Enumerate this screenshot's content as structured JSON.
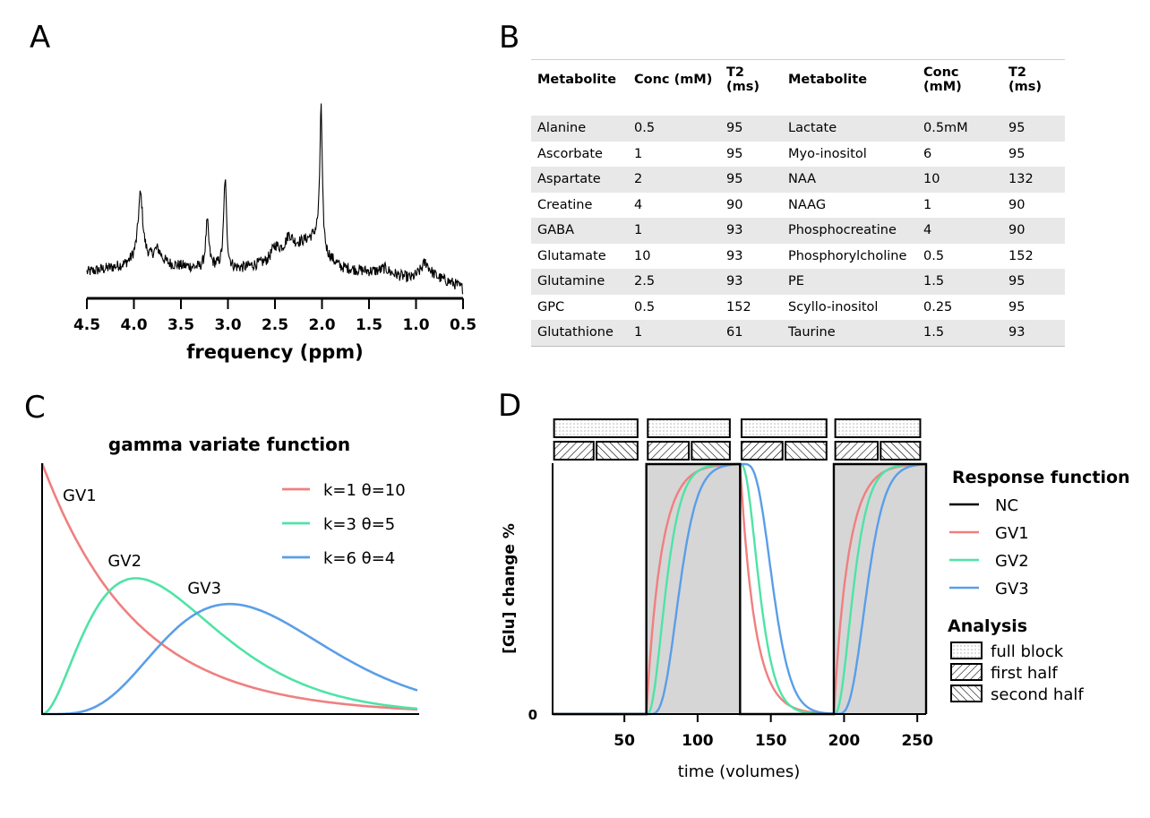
{
  "panels": {
    "a": "A",
    "b": "B",
    "c": "C",
    "d": "D"
  },
  "chart_data": [
    {
      "id": "A",
      "type": "line",
      "description_series": "MR spectrum (noisy trace)",
      "xlabel": "frequency (ppm)",
      "ylabel": "",
      "xlim": [
        4.5,
        0.5
      ],
      "x_reversed": true,
      "xticks": [
        "4.5",
        "4.0",
        "3.5",
        "3.0",
        "2.5",
        "2.0",
        "1.5",
        "1.0",
        "0.5"
      ],
      "baseline": [
        [
          4.5,
          0.1
        ],
        [
          4.3,
          0.12
        ],
        [
          4.1,
          0.14
        ],
        [
          3.95,
          0.18
        ],
        [
          3.8,
          0.16
        ],
        [
          3.6,
          0.14
        ],
        [
          3.4,
          0.13
        ],
        [
          3.3,
          0.12
        ],
        [
          3.15,
          0.13
        ],
        [
          3.0,
          0.12
        ],
        [
          2.9,
          0.12
        ],
        [
          2.8,
          0.13
        ],
        [
          2.6,
          0.16
        ],
        [
          2.45,
          0.22
        ],
        [
          2.3,
          0.26
        ],
        [
          2.15,
          0.3
        ],
        [
          2.05,
          0.32
        ],
        [
          1.95,
          0.2
        ],
        [
          1.8,
          0.13
        ],
        [
          1.6,
          0.11
        ],
        [
          1.4,
          0.1
        ],
        [
          1.2,
          0.08
        ],
        [
          1.05,
          0.06
        ],
        [
          0.9,
          0.1
        ],
        [
          0.75,
          0.06
        ],
        [
          0.6,
          0.03
        ],
        [
          0.5,
          0.0
        ]
      ],
      "peaks": [
        {
          "ppm": 3.93,
          "height": 0.4,
          "width": 0.03
        },
        {
          "ppm": 3.75,
          "height": 0.08,
          "width": 0.05
        },
        {
          "ppm": 3.22,
          "height": 0.28,
          "width": 0.02
        },
        {
          "ppm": 3.03,
          "height": 0.55,
          "width": 0.018
        },
        {
          "ppm": 2.5,
          "height": 0.06,
          "width": 0.04
        },
        {
          "ppm": 2.35,
          "height": 0.08,
          "width": 0.04
        },
        {
          "ppm": 2.01,
          "height": 0.85,
          "width": 0.015
        },
        {
          "ppm": 1.33,
          "height": 0.03,
          "width": 0.05
        },
        {
          "ppm": 0.9,
          "height": 0.06,
          "width": 0.05
        }
      ],
      "ylim": [
        0,
        1.25
      ]
    },
    {
      "id": "C",
      "type": "line",
      "title": "gamma variate function",
      "xlim": [
        0,
        40
      ],
      "ylim": [
        0,
        0.1
      ],
      "series": [
        {
          "name": "GV1",
          "legend": "k=1 θ=10",
          "k": 1,
          "theta": 10,
          "color": "#f07f7f"
        },
        {
          "name": "GV2",
          "legend": "k=3 θ=5",
          "k": 3,
          "theta": 5,
          "color": "#4fe3a6"
        },
        {
          "name": "GV3",
          "legend": "k=6 θ=4",
          "k": 6,
          "theta": 4,
          "color": "#5a9ee8"
        }
      ],
      "annotations": [
        {
          "text": "GV1",
          "x": 2.2,
          "y": 0.085
        },
        {
          "text": "GV2",
          "x": 7,
          "y": 0.059
        },
        {
          "text": "GV3",
          "x": 15.5,
          "y": 0.048
        }
      ]
    },
    {
      "id": "D",
      "type": "line",
      "xlabel": "time (volumes)",
      "ylabel": "[Glu] change %",
      "xlim": [
        1,
        256
      ],
      "ylim": [
        0,
        1
      ],
      "xticks": [
        50,
        100,
        150,
        200,
        250
      ],
      "yticks": [
        {
          "value": 0,
          "label": "0"
        }
      ],
      "stimulus_blocks": [
        [
          65,
          129
        ],
        [
          193,
          256
        ]
      ],
      "analysis_blocks": {
        "full_block": [
          [
            2,
            59
          ],
          [
            66,
            122
          ],
          [
            130,
            188
          ],
          [
            194,
            252
          ]
        ],
        "first_half": [
          [
            2,
            29
          ],
          [
            31,
            59
          ],
          [
            66,
            94
          ],
          [
            96,
            122
          ],
          [
            130,
            158
          ],
          [
            160,
            188
          ],
          [
            194,
            223
          ],
          [
            225,
            252
          ]
        ]
      },
      "series": [
        {
          "name": "NC",
          "color": "#000000"
        },
        {
          "name": "GV1",
          "color": "#f07f7f",
          "k": 1,
          "theta": 10
        },
        {
          "name": "GV2",
          "color": "#4fe3a6",
          "k": 3,
          "theta": 5
        },
        {
          "name": "GV3",
          "color": "#5a9ee8",
          "k": 6,
          "theta": 4
        }
      ],
      "legend_title": "Response function",
      "legend_items": [
        "NC",
        "GV1",
        "GV2",
        "GV3"
      ],
      "analysis_title": "Analysis",
      "analysis_items": [
        "full block",
        "first half",
        "second half"
      ]
    }
  ],
  "table_b": {
    "headers": [
      "Metabolite",
      "Conc (mM)",
      "T2 (ms)",
      "Metabolite",
      "Conc (mM)",
      "T2 (ms)"
    ],
    "rows": [
      [
        "Alanine",
        "0.5",
        "95",
        "Lactate",
        "0.5mM",
        "95"
      ],
      [
        "Ascorbate",
        "1",
        "95",
        "Myo-inositol",
        "6",
        "95"
      ],
      [
        "Aspartate",
        "2",
        "95",
        "NAA",
        "10",
        "132"
      ],
      [
        "Creatine",
        "4",
        "90",
        "NAAG",
        "1",
        "90"
      ],
      [
        "GABA",
        "1",
        "93",
        "Phosphocreatine",
        "4",
        "90"
      ],
      [
        "Glutamate",
        "10",
        "93",
        "Phosphorylcholine",
        "0.5",
        "152"
      ],
      [
        "Glutamine",
        "2.5",
        "93",
        "PE",
        "1.5",
        "95"
      ],
      [
        "GPC",
        "0.5",
        "152",
        "Scyllo-inositol",
        "0.25",
        "95"
      ],
      [
        "Glutathione",
        "1",
        "61",
        "Taurine",
        "1.5",
        "93"
      ]
    ]
  }
}
